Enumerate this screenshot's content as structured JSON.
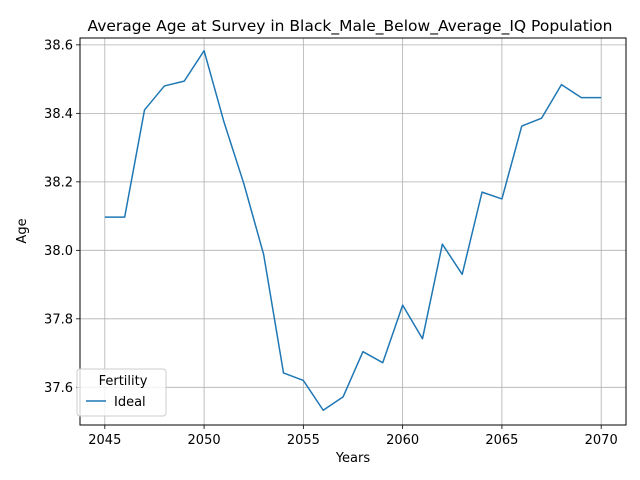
{
  "chart_data": {
    "type": "line",
    "title": "Average Age at Survey in Black_Male_Below_Average_IQ Population",
    "xlabel": "Years",
    "ylabel": "Age",
    "xlim": [
      2043.75,
      2071.25
    ],
    "ylim": [
      37.49,
      38.62
    ],
    "x_ticks": [
      2045,
      2050,
      2055,
      2060,
      2065,
      2070
    ],
    "y_ticks": [
      37.6,
      37.8,
      38.0,
      38.2,
      38.4,
      38.6
    ],
    "x_tick_labels": [
      "2045",
      "2050",
      "2055",
      "2060",
      "2065",
      "2070"
    ],
    "y_tick_labels": [
      "37.6",
      "37.8",
      "38.0",
      "38.2",
      "38.4",
      "38.6"
    ],
    "grid": true,
    "legend": {
      "title": "Fertility",
      "placement": "lower-left",
      "entries": [
        "Ideal"
      ]
    },
    "series": [
      {
        "name": "Ideal",
        "color": "#1f77b4",
        "x": [
          2045,
          2046,
          2047,
          2048,
          2049,
          2050,
          2051,
          2052,
          2053,
          2054,
          2055,
          2056,
          2057,
          2058,
          2059,
          2060,
          2061,
          2062,
          2063,
          2064,
          2065,
          2066,
          2067,
          2068,
          2069,
          2070
        ],
        "values": [
          38.097,
          38.097,
          38.41,
          38.48,
          38.494,
          38.583,
          38.375,
          38.195,
          37.988,
          37.642,
          37.62,
          37.533,
          37.572,
          37.704,
          37.672,
          37.84,
          37.742,
          38.018,
          37.93,
          38.17,
          38.15,
          38.363,
          38.386,
          38.484,
          38.446,
          38.446
        ]
      }
    ]
  }
}
